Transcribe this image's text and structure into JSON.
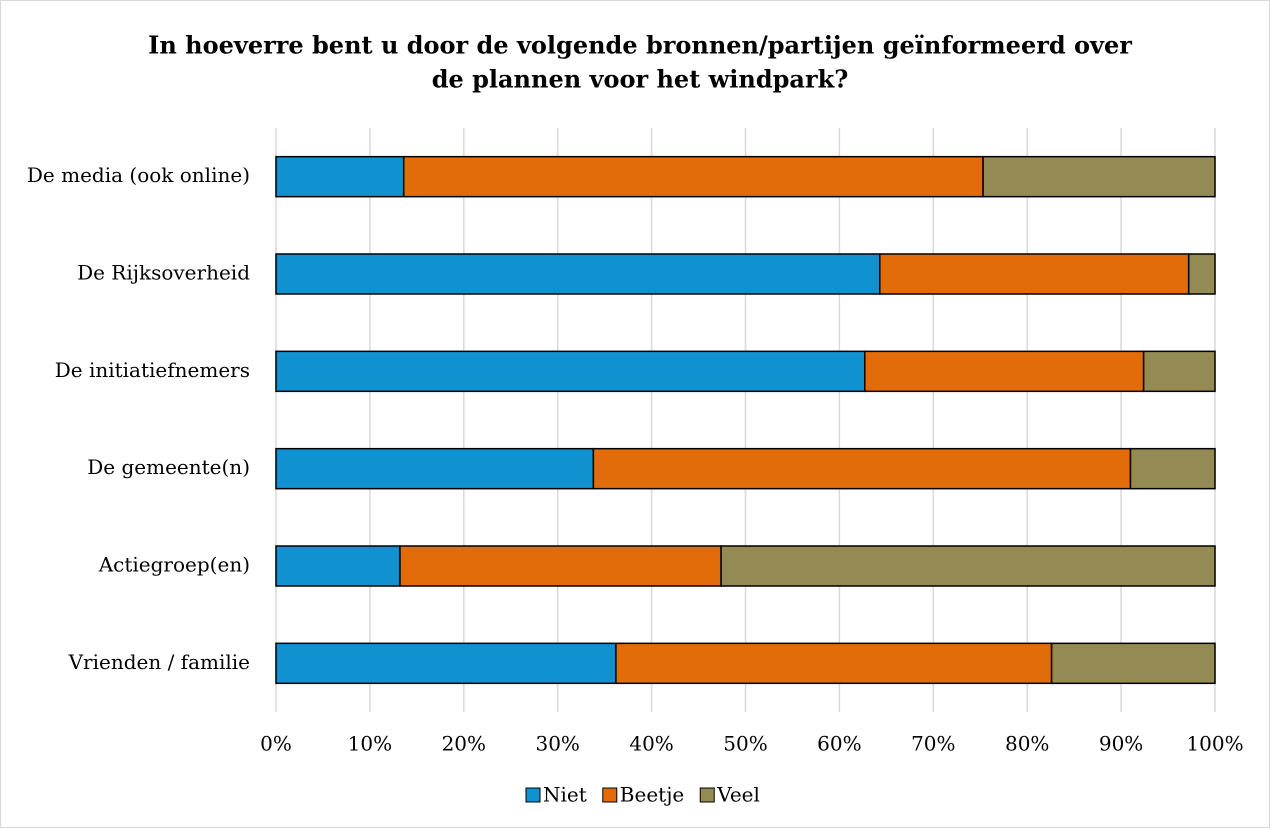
{
  "chart_data": {
    "type": "stacked_barh",
    "title": [
      "In hoeverre bent u door de volgende bronnen/partijen geïnformeerd over",
      "de plannen voor het windpark?"
    ],
    "categories": [
      "De media (ook online)",
      "De Rijksoverheid",
      "De initiatiefnemers",
      "De gemeente(n)",
      "Actiegroep(en)",
      "Vrienden / familie"
    ],
    "series": [
      {
        "name": "Niet",
        "color": "#1192d0",
        "values": [
          13.6,
          64.3,
          62.7,
          33.8,
          13.2,
          36.2
        ]
      },
      {
        "name": "Beetje",
        "color": "#e36c0a",
        "values": [
          61.7,
          32.9,
          29.7,
          57.2,
          34.2,
          46.4
        ]
      },
      {
        "name": "Veel",
        "color": "#948a54",
        "values": [
          24.7,
          2.8,
          7.6,
          9.0,
          52.6,
          17.4
        ]
      }
    ],
    "xlim": [
      0,
      100
    ],
    "xticks": [
      {
        "value": 0,
        "label": "0%"
      },
      {
        "value": 10,
        "label": "10%"
      },
      {
        "value": 20,
        "label": "20%"
      },
      {
        "value": 30,
        "label": "30%"
      },
      {
        "value": 40,
        "label": "40%"
      },
      {
        "value": 50,
        "label": "50%"
      },
      {
        "value": 60,
        "label": "60%"
      },
      {
        "value": 70,
        "label": "70%"
      },
      {
        "value": 80,
        "label": "80%"
      },
      {
        "value": 90,
        "label": "90%"
      },
      {
        "value": 100,
        "label": "100%"
      }
    ],
    "grid": true,
    "legend": "bottom"
  }
}
